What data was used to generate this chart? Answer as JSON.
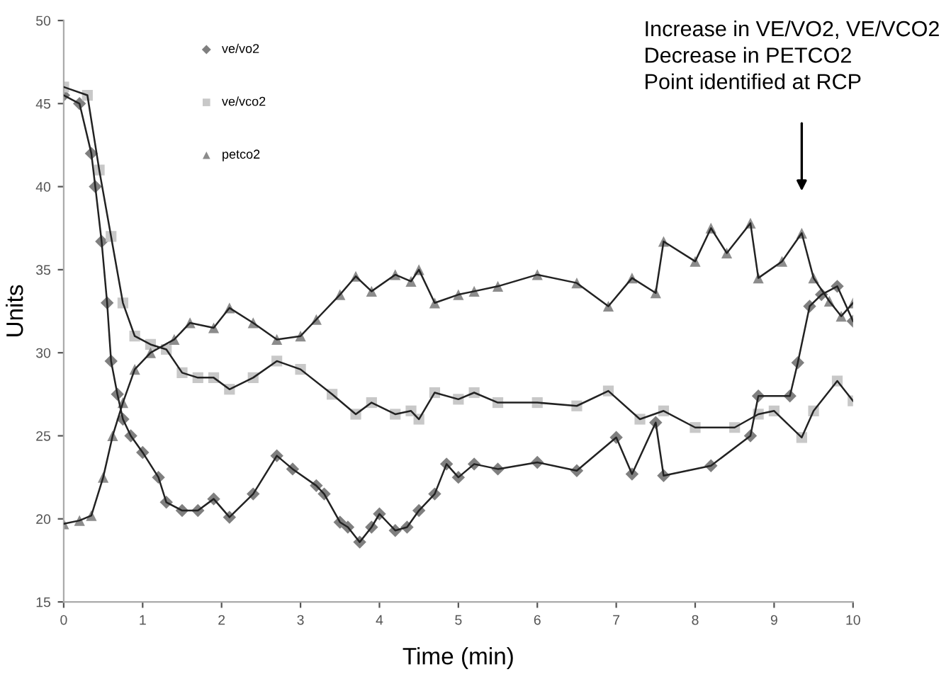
{
  "chart_data": {
    "type": "line",
    "xlabel": "Time (min)",
    "ylabel": "Units",
    "xlim": [
      0,
      10
    ],
    "ylim": [
      15,
      50
    ],
    "xticks": [
      0,
      1,
      2,
      3,
      4,
      5,
      6,
      7,
      8,
      9,
      10
    ],
    "yticks": [
      15,
      20,
      25,
      30,
      35,
      40,
      45,
      50
    ],
    "grid": false,
    "legend": "top left",
    "line_style": "solid",
    "annotations": [
      "Increase in VE/VO2, VE/VCO2\nDecrease in PETCO2\nPoint identified at RCP"
    ],
    "series": [
      {
        "name": "ve/vo2",
        "color": "#7f7f7f",
        "marker": "diamond",
        "x": [
          0,
          0.2,
          0.35,
          0.4,
          0.48,
          0.55,
          0.6,
          0.68,
          0.75,
          0.85,
          1.0,
          1.2,
          1.3,
          1.5,
          1.7,
          1.9,
          2.1,
          2.4,
          2.7,
          2.9,
          3.2,
          3.3,
          3.5,
          3.6,
          3.75,
          3.9,
          4.0,
          4.2,
          4.35,
          4.5,
          4.7,
          4.85,
          5.0,
          5.2,
          5.5,
          6.0,
          6.5,
          7.0,
          7.2,
          7.5,
          7.6,
          8.2,
          8.7,
          8.8,
          9.2,
          9.3,
          9.45,
          9.6,
          9.8,
          10
        ],
        "values": [
          45.5,
          45,
          42,
          40,
          36.7,
          33,
          29.5,
          27.5,
          26,
          25,
          24,
          22.5,
          21,
          20.5,
          20.5,
          21.2,
          20.1,
          21.5,
          23.8,
          23,
          22,
          21.5,
          19.8,
          19.5,
          18.6,
          19.5,
          20.3,
          19.3,
          19.5,
          20.5,
          21.5,
          23.3,
          22.5,
          23.3,
          23.0,
          23.4,
          22.9,
          24.9,
          22.7,
          25.8,
          22.6,
          23.2,
          25,
          27.4,
          27.4,
          29.4,
          32.8,
          33.5,
          34,
          31.9
        ]
      },
      {
        "name": "ve/vco2",
        "color": "#c8c8c8",
        "marker": "square",
        "x": [
          0,
          0.3,
          0.45,
          0.6,
          0.75,
          0.9,
          1.1,
          1.3,
          1.5,
          1.7,
          1.9,
          2.1,
          2.4,
          2.7,
          3.0,
          3.4,
          3.7,
          3.9,
          4.2,
          4.4,
          4.5,
          4.7,
          5.0,
          5.2,
          5.5,
          6.0,
          6.5,
          6.9,
          7.3,
          7.6,
          8.0,
          8.5,
          8.8,
          9.0,
          9.35,
          9.5,
          9.8,
          10
        ],
        "values": [
          46,
          45.5,
          41,
          37,
          33,
          31,
          30.5,
          30.2,
          28.8,
          28.5,
          28.5,
          27.8,
          28.5,
          29.5,
          29,
          27.5,
          26.3,
          27,
          26.3,
          26.5,
          26,
          27.6,
          27.2,
          27.6,
          27.0,
          27.0,
          26.8,
          27.7,
          26.0,
          26.5,
          25.5,
          25.5,
          26.3,
          26.5,
          24.9,
          26.5,
          28.3,
          27.1
        ]
      },
      {
        "name": "petco2",
        "color": "#8c8c8c",
        "marker": "triangle",
        "x": [
          0,
          0.2,
          0.35,
          0.5,
          0.62,
          0.75,
          0.9,
          1.1,
          1.4,
          1.6,
          1.9,
          2.1,
          2.4,
          2.7,
          3.0,
          3.2,
          3.5,
          3.7,
          3.9,
          4.2,
          4.4,
          4.5,
          4.7,
          5.0,
          5.2,
          5.5,
          6.0,
          6.5,
          6.9,
          7.2,
          7.5,
          7.6,
          8.0,
          8.2,
          8.4,
          8.7,
          8.8,
          9.1,
          9.35,
          9.5,
          9.7,
          9.85,
          10
        ],
        "values": [
          19.7,
          19.9,
          20.2,
          22.5,
          25,
          27,
          29,
          30,
          30.8,
          31.8,
          31.5,
          32.7,
          31.8,
          30.8,
          31,
          32,
          33.5,
          34.6,
          33.7,
          34.7,
          34.3,
          35,
          33,
          33.5,
          33.7,
          34,
          34.7,
          34.2,
          32.8,
          34.5,
          33.6,
          36.7,
          35.5,
          37.5,
          36,
          37.8,
          34.5,
          35.5,
          37.2,
          34.5,
          33.1,
          32.2,
          33
        ]
      }
    ]
  }
}
